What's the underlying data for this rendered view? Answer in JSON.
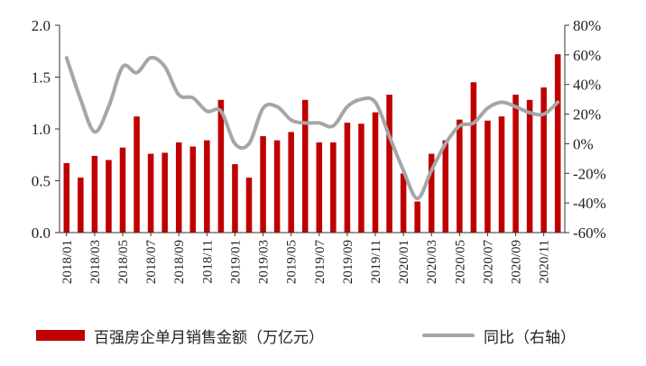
{
  "chart_data": {
    "type": "bar",
    "categories": [
      "2018/01",
      "2018/02",
      "2018/03",
      "2018/04",
      "2018/05",
      "2018/06",
      "2018/07",
      "2018/08",
      "2018/09",
      "2018/10",
      "2018/11",
      "2018/12",
      "2019/01",
      "2019/02",
      "2019/03",
      "2019/04",
      "2019/05",
      "2019/06",
      "2019/07",
      "2019/08",
      "2019/09",
      "2019/10",
      "2019/11",
      "2019/12",
      "2020/01",
      "2020/02",
      "2020/03",
      "2020/04",
      "2020/05",
      "2020/06",
      "2020/07",
      "2020/08",
      "2020/09",
      "2020/10",
      "2020/11",
      "2020/12"
    ],
    "x_tick_labels": [
      "2018/01",
      "2018/03",
      "2018/05",
      "2018/07",
      "2018/09",
      "2018/11",
      "2019/01",
      "2019/03",
      "2019/05",
      "2019/07",
      "2019/09",
      "2019/11",
      "2020/01",
      "2020/03",
      "2020/05",
      "2020/07",
      "2020/09",
      "2020/11"
    ],
    "series": [
      {
        "name": "百强房企单月销售金额（万亿元）",
        "type": "bar",
        "axis": "left",
        "color": "#c00000",
        "values": [
          0.67,
          0.53,
          0.74,
          0.7,
          0.82,
          1.12,
          0.76,
          0.77,
          0.87,
          0.83,
          0.89,
          1.28,
          0.66,
          0.53,
          0.93,
          0.89,
          0.97,
          1.28,
          0.87,
          0.87,
          1.06,
          1.05,
          1.16,
          1.33,
          0.57,
          0.3,
          0.76,
          0.89,
          1.09,
          1.45,
          1.08,
          1.12,
          1.33,
          1.28,
          1.4,
          1.72
        ]
      },
      {
        "name": "同比（右轴）",
        "type": "line",
        "axis": "right",
        "color": "#a6a6a6",
        "values": [
          58,
          30,
          8,
          25,
          52,
          48,
          58,
          52,
          33,
          31,
          22,
          22,
          0,
          0,
          24,
          25,
          16,
          14,
          14,
          12,
          25,
          30,
          28,
          5,
          -18,
          -37,
          -18,
          0,
          12,
          14,
          24,
          28,
          25,
          21,
          20,
          28
        ]
      }
    ],
    "left_axis": {
      "ticks": [
        "0.0",
        "0.5",
        "1.0",
        "1.5",
        "2.0"
      ],
      "min": 0,
      "max": 2
    },
    "right_axis": {
      "ticks": [
        "-60%",
        "-40%",
        "-20%",
        "0%",
        "20%",
        "40%",
        "60%",
        "80%"
      ],
      "min": -60,
      "max": 80
    },
    "legend_position": "bottom",
    "grid": false
  }
}
